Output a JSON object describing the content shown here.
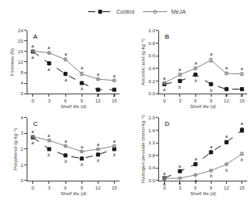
{
  "chart_data": [
    {
      "type": "line",
      "title": "A",
      "x_label": "Shelf life (d)",
      "y_label": "Firmness (N)",
      "x": [
        0,
        3,
        6,
        9,
        12,
        15
      ],
      "xlim": [
        -1,
        16
      ],
      "xticks": [
        0,
        3,
        6,
        9,
        12,
        15
      ],
      "ylim": [
        0,
        24
      ],
      "yticks": [
        0,
        4,
        8,
        12,
        16,
        20,
        24
      ],
      "grid": false,
      "legend": "top",
      "series": [
        {
          "name": "Control",
          "color": "#1a1a1a",
          "marker": "square",
          "line_style": "dashed",
          "values": [
            16.0,
            11.5,
            7.5,
            4.0,
            1.5,
            1.5
          ],
          "error": [
            0.4,
            0.5,
            0.4,
            0.3,
            0.2,
            0.2
          ],
          "point_labels": [
            "a",
            "a",
            "a",
            "b",
            "b",
            "b"
          ]
        },
        {
          "name": "MeJA",
          "color": "#888888",
          "marker": "circle-open",
          "line_style": "solid",
          "values": [
            16.2,
            15.5,
            13.0,
            7.5,
            5.5,
            5.0
          ],
          "error": [
            0.3,
            0.4,
            0.5,
            0.6,
            0.4,
            0.3
          ],
          "point_labels": [
            "a",
            "a",
            "a",
            "a",
            "a",
            "a"
          ]
        }
      ]
    },
    {
      "type": "line",
      "title": "B",
      "x_label": "Shelf life (d)",
      "y_label": "Ascorbic acid (g·kg⁻¹)",
      "x": [
        0,
        3,
        6,
        9,
        12,
        15
      ],
      "xlim": [
        -1,
        16
      ],
      "xticks": [
        0,
        3,
        6,
        9,
        12,
        15
      ],
      "ylim": [
        0.0,
        1.0
      ],
      "yticks": [
        {
          "value": 0.0,
          "label": "0.0"
        },
        0.2,
        0.4,
        0.6,
        0.8,
        {
          "value": 1.0,
          "label": "1.0"
        }
      ],
      "grid": false,
      "legend": "top",
      "series": [
        {
          "name": "Control",
          "color": "#1a1a1a",
          "marker": "square",
          "line_style": "dashed",
          "values": [
            0.15,
            0.2,
            0.3,
            0.15,
            0.07,
            0.07
          ],
          "error": [
            0.01,
            0.02,
            0.02,
            0.02,
            0.01,
            0.01
          ],
          "point_labels": [
            "a",
            "b",
            "b",
            "b",
            "b",
            "b"
          ]
        },
        {
          "name": "MeJA",
          "color": "#888888",
          "marker": "circle-open",
          "line_style": "solid",
          "values": [
            0.17,
            0.3,
            0.4,
            0.53,
            0.32,
            0.31
          ],
          "error": [
            0.01,
            0.02,
            0.02,
            0.03,
            0.02,
            0.02
          ],
          "point_labels": [
            "a",
            "a",
            "a",
            "a",
            "a",
            "a"
          ]
        }
      ]
    },
    {
      "type": "line",
      "title": "C",
      "x_label": "Shelf life (d)",
      "y_label": "Polyphenol (g·kg⁻¹)",
      "x": [
        0,
        3,
        6,
        9,
        12,
        15
      ],
      "xlim": [
        -1,
        16
      ],
      "xticks": [
        0,
        3,
        6,
        9,
        12,
        15
      ],
      "ylim": [
        0,
        4
      ],
      "yticks": [
        0,
        1,
        2,
        3,
        4
      ],
      "grid": false,
      "legend": "top",
      "series": [
        {
          "name": "Control",
          "color": "#1a1a1a",
          "marker": "square",
          "line_style": "dashed",
          "values": [
            2.75,
            2.0,
            1.6,
            1.4,
            1.65,
            2.0
          ],
          "error": [
            0.05,
            0.06,
            0.06,
            0.05,
            0.05,
            0.05
          ],
          "point_labels": [
            "a",
            "b",
            "b",
            "b",
            "b",
            "b"
          ]
        },
        {
          "name": "MeJA",
          "color": "#888888",
          "marker": "circle-open",
          "line_style": "solid",
          "values": [
            2.8,
            2.55,
            2.2,
            1.85,
            2.0,
            2.2
          ],
          "error": [
            0.05,
            0.05,
            0.05,
            0.05,
            0.05,
            0.06
          ],
          "point_labels": [
            "a",
            "a",
            "a",
            "a",
            "a",
            "a"
          ]
        }
      ]
    },
    {
      "type": "line",
      "title": "D",
      "x_label": "Shelf life (d)",
      "y_label": "Hydrogen peroxide (mmol·kg⁻¹)",
      "x": [
        0,
        3,
        6,
        9,
        12,
        15
      ],
      "xlim": [
        -1,
        16
      ],
      "xticks": [
        0,
        3,
        6,
        9,
        12,
        15
      ],
      "ylim": [
        0.0,
        2.0
      ],
      "yticks": [
        {
          "value": 0.0,
          "label": "0.0"
        },
        0.4,
        0.8,
        1.2,
        1.6,
        {
          "value": 2.0,
          "label": "2.0"
        }
      ],
      "grid": false,
      "legend": "top",
      "series": [
        {
          "name": "Control",
          "color": "#1a1a1a",
          "marker": "square",
          "line_style": "dashed",
          "values": [
            0.08,
            0.3,
            0.52,
            0.9,
            1.22,
            1.6
          ],
          "error": [
            0.01,
            0.02,
            0.03,
            0.04,
            0.05,
            0.07
          ],
          "point_labels": [
            "a",
            "a",
            "a",
            "a",
            "a",
            "a"
          ]
        },
        {
          "name": "MeJA",
          "color": "#888888",
          "marker": "circle-open",
          "line_style": "solid",
          "values": [
            0.07,
            0.08,
            0.18,
            0.32,
            0.52,
            0.85
          ],
          "error": [
            0.01,
            0.01,
            0.02,
            0.02,
            0.03,
            0.04
          ],
          "point_labels": [
            "a",
            "a",
            "b",
            "b",
            "b",
            "b"
          ]
        }
      ]
    }
  ]
}
